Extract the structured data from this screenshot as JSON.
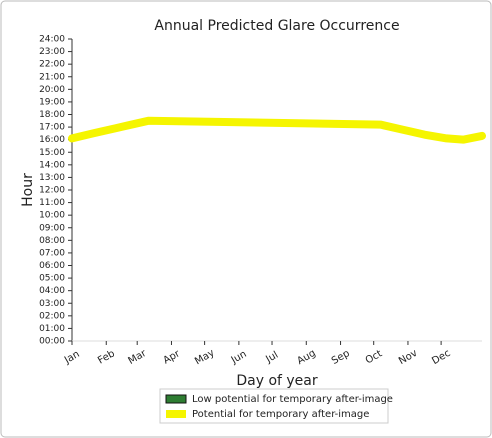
{
  "chart_data": {
    "type": "line",
    "title": "Annual Predicted Glare Occurrence",
    "xlabel": "Day of year",
    "ylabel": "Hour",
    "xlim": [
      1,
      372
    ],
    "ylim": [
      0,
      24
    ],
    "xticks": [
      {
        "value": 1,
        "label": "Jan"
      },
      {
        "value": 32,
        "label": "Feb"
      },
      {
        "value": 60,
        "label": "Mar"
      },
      {
        "value": 91,
        "label": "Apr"
      },
      {
        "value": 121,
        "label": "May"
      },
      {
        "value": 152,
        "label": "Jun"
      },
      {
        "value": 182,
        "label": "Jul"
      },
      {
        "value": 213,
        "label": "Aug"
      },
      {
        "value": 244,
        "label": "Sep"
      },
      {
        "value": 274,
        "label": "Oct"
      },
      {
        "value": 305,
        "label": "Nov"
      },
      {
        "value": 335,
        "label": "Dec"
      }
    ],
    "yticks": [
      {
        "value": 0,
        "label": "00:00"
      },
      {
        "value": 1,
        "label": "01:00"
      },
      {
        "value": 2,
        "label": "02:00"
      },
      {
        "value": 3,
        "label": "03:00"
      },
      {
        "value": 4,
        "label": "04:00"
      },
      {
        "value": 5,
        "label": "05:00"
      },
      {
        "value": 6,
        "label": "06:00"
      },
      {
        "value": 7,
        "label": "07:00"
      },
      {
        "value": 8,
        "label": "08:00"
      },
      {
        "value": 9,
        "label": "09:00"
      },
      {
        "value": 10,
        "label": "10:00"
      },
      {
        "value": 11,
        "label": "11:00"
      },
      {
        "value": 12,
        "label": "12:00"
      },
      {
        "value": 13,
        "label": "13:00"
      },
      {
        "value": 14,
        "label": "14:00"
      },
      {
        "value": 15,
        "label": "15:00"
      },
      {
        "value": 16,
        "label": "16:00"
      },
      {
        "value": 17,
        "label": "17:00"
      },
      {
        "value": 18,
        "label": "18:00"
      },
      {
        "value": 19,
        "label": "19:00"
      },
      {
        "value": 20,
        "label": "20:00"
      },
      {
        "value": 21,
        "label": "21:00"
      },
      {
        "value": 22,
        "label": "22:00"
      },
      {
        "value": 23,
        "label": "23:00"
      },
      {
        "value": 24,
        "label": "24:00"
      }
    ],
    "x": [
      1,
      20,
      40,
      60,
      70,
      280,
      300,
      320,
      340,
      355,
      372
    ],
    "series": [
      {
        "name": "Low potential for temporary after-image",
        "color": "#2e7d32",
        "values": [
          null,
          null,
          null,
          null,
          null,
          null,
          null,
          null,
          null,
          null,
          null
        ]
      },
      {
        "name": "Potential for temporary after-image",
        "color": "#f5f500",
        "values": [
          16.1,
          16.5,
          16.9,
          17.3,
          17.5,
          17.2,
          16.8,
          16.4,
          16.1,
          16.0,
          16.3
        ]
      }
    ]
  }
}
